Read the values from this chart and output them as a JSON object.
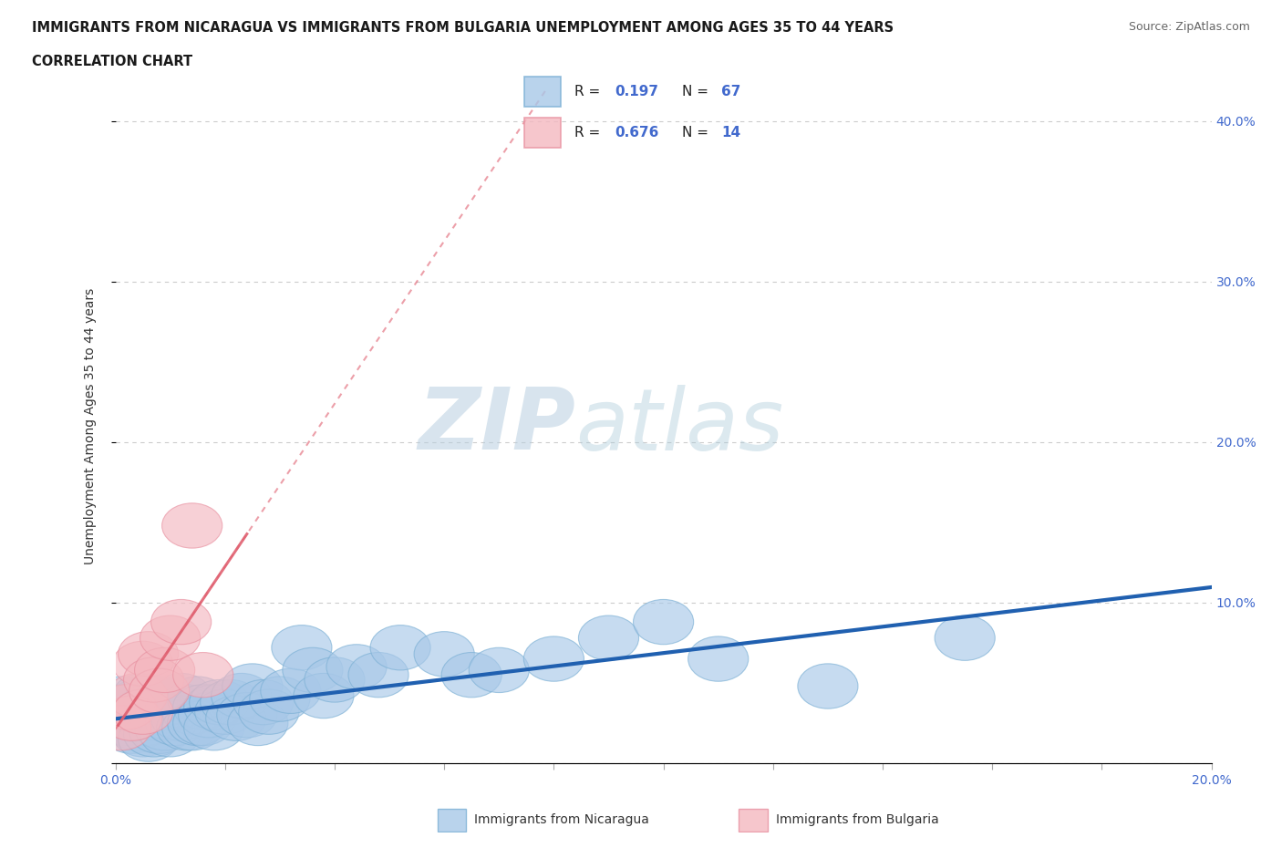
{
  "title_line1": "IMMIGRANTS FROM NICARAGUA VS IMMIGRANTS FROM BULGARIA UNEMPLOYMENT AMONG AGES 35 TO 44 YEARS",
  "title_line2": "CORRELATION CHART",
  "source_text": "Source: ZipAtlas.com",
  "ylabel": "Unemployment Among Ages 35 to 44 years",
  "xlim": [
    0,
    0.2
  ],
  "ylim": [
    0,
    0.42
  ],
  "ytick_positions": [
    0.0,
    0.1,
    0.2,
    0.3,
    0.4
  ],
  "ytick_labels_right": [
    "",
    "10.0%",
    "20.0%",
    "30.0%",
    "40.0%"
  ],
  "color_nicaragua": "#a8c8e8",
  "color_nicaragua_edge": "#7aafd4",
  "color_bulgaria": "#f4b8c0",
  "color_bulgaria_edge": "#e890a0",
  "color_nicaragua_line": "#2060b0",
  "color_bulgaria_line": "#e06070",
  "watermark_zip": "ZIP",
  "watermark_atlas": "atlas",
  "nicaragua_x": [
    0.001,
    0.002,
    0.002,
    0.003,
    0.003,
    0.004,
    0.004,
    0.005,
    0.005,
    0.005,
    0.006,
    0.006,
    0.006,
    0.007,
    0.007,
    0.007,
    0.008,
    0.008,
    0.008,
    0.009,
    0.009,
    0.01,
    0.01,
    0.01,
    0.011,
    0.011,
    0.012,
    0.012,
    0.013,
    0.013,
    0.014,
    0.014,
    0.015,
    0.015,
    0.016,
    0.016,
    0.017,
    0.018,
    0.018,
    0.019,
    0.02,
    0.021,
    0.022,
    0.023,
    0.024,
    0.025,
    0.026,
    0.027,
    0.028,
    0.03,
    0.032,
    0.034,
    0.036,
    0.038,
    0.04,
    0.044,
    0.048,
    0.052,
    0.06,
    0.065,
    0.07,
    0.08,
    0.09,
    0.1,
    0.11,
    0.13,
    0.155
  ],
  "nicaragua_y": [
    0.04,
    0.035,
    0.025,
    0.03,
    0.02,
    0.038,
    0.022,
    0.042,
    0.03,
    0.018,
    0.035,
    0.025,
    0.015,
    0.038,
    0.028,
    0.018,
    0.04,
    0.03,
    0.02,
    0.035,
    0.022,
    0.038,
    0.028,
    0.018,
    0.035,
    0.025,
    0.042,
    0.028,
    0.035,
    0.022,
    0.032,
    0.022,
    0.04,
    0.025,
    0.035,
    0.025,
    0.03,
    0.035,
    0.022,
    0.038,
    0.032,
    0.038,
    0.028,
    0.042,
    0.03,
    0.048,
    0.025,
    0.038,
    0.032,
    0.04,
    0.045,
    0.072,
    0.058,
    0.042,
    0.052,
    0.06,
    0.055,
    0.072,
    0.068,
    0.055,
    0.058,
    0.065,
    0.078,
    0.088,
    0.065,
    0.048,
    0.078
  ],
  "bulgaria_x": [
    0.001,
    0.002,
    0.003,
    0.004,
    0.005,
    0.005,
    0.006,
    0.007,
    0.008,
    0.009,
    0.01,
    0.012,
    0.014,
    0.016
  ],
  "bulgaria_y": [
    0.022,
    0.035,
    0.028,
    0.042,
    0.062,
    0.032,
    0.068,
    0.052,
    0.045,
    0.058,
    0.078,
    0.088,
    0.148,
    0.055
  ]
}
